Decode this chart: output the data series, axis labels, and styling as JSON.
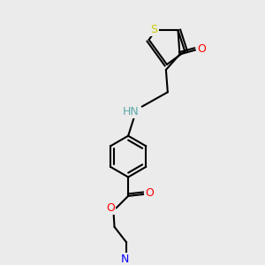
{
  "bg_color": "#ebebeb",
  "bond_color": "#000000",
  "bond_lw": 1.5,
  "atom_colors": {
    "S": "#cccc00",
    "O": "#ff0000",
    "N_nh": "#5fa8a8",
    "N_ter": "#0000ff",
    "C": "#000000"
  },
  "font_size": 9,
  "font_size_small": 7.5
}
